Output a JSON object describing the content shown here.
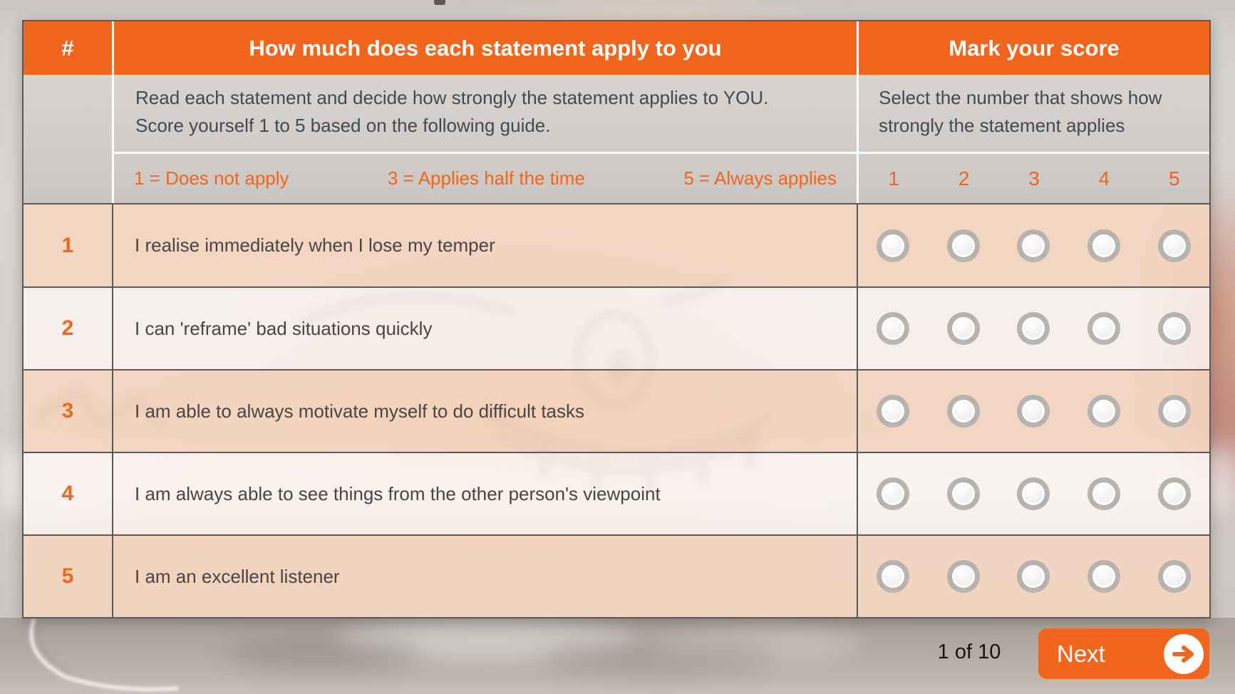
{
  "table": {
    "header": {
      "number": "#",
      "statement": "How much does each statement apply to you",
      "score": "Mark your score"
    },
    "instructions": {
      "statement_lines": [
        "Read each statement and decide how strongly the statement applies to YOU.",
        "Score yourself 1 to 5 based on the following guide."
      ],
      "score_lines": [
        "Select the number that shows how",
        "strongly the statement applies"
      ]
    },
    "guide": [
      "1 = Does not apply",
      "3 = Applies half the time",
      "5 = Always applies"
    ],
    "score_values": [
      "1",
      "2",
      "3",
      "4",
      "5"
    ],
    "questions": [
      {
        "num": "1",
        "text": "I realise immediately when I lose my temper"
      },
      {
        "num": "2",
        "text": "I can 'reframe' bad situations quickly"
      },
      {
        "num": "3",
        "text": "I am able to always motivate myself to do difficult tasks"
      },
      {
        "num": "4",
        "text": "I am always able to see things from the other person's viewpoint"
      },
      {
        "num": "5",
        "text": "I am an excellent listener"
      }
    ]
  },
  "footer": {
    "page_indicator": "1 of 10",
    "next_label": "Next",
    "next_icon": "arrow-right-icon"
  },
  "colors": {
    "accent_orange": "#F2651D",
    "header_text": "#FFFFFF",
    "instruction_bg": "#D2CFCD",
    "row_odd_bg": "#F6D6C0",
    "row_even_bg": "#FBF5F1",
    "border_dark": "#5B5856",
    "statement_text": "#484542"
  }
}
